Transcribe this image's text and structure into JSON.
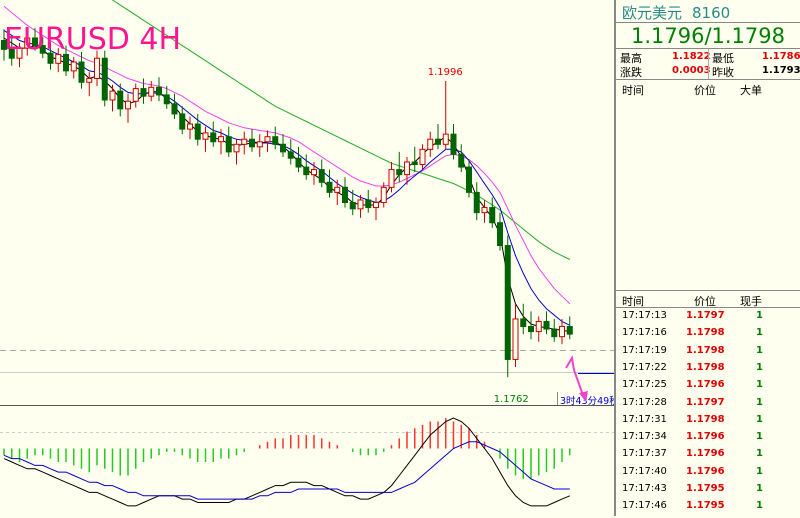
{
  "title": "EURUSD 4H",
  "panel": {
    "name": "欧元美元",
    "code": "8160",
    "quote": "1.1796/1.1798",
    "stats": [
      {
        "label": "最高",
        "value": "1.1822",
        "color": "red"
      },
      {
        "label": "最低",
        "value": "1.1786",
        "color": "red"
      },
      {
        "label": "涨跌",
        "value": "0.0003",
        "color": "red"
      },
      {
        "label": "昨收",
        "value": "1.1793",
        "color": "black"
      }
    ],
    "top_headers": [
      "时间",
      "价位",
      "大单"
    ],
    "tick_headers": [
      "时间",
      "价位",
      "现手"
    ],
    "ticks": [
      {
        "time": "17:17:13",
        "price": "1.1797",
        "vol": "1"
      },
      {
        "time": "17:17:16",
        "price": "1.1798",
        "vol": "1"
      },
      {
        "time": "17:17:19",
        "price": "1.1798",
        "vol": "1"
      },
      {
        "time": "17:17:22",
        "price": "1.1798",
        "vol": "1"
      },
      {
        "time": "17:17:25",
        "price": "1.1796",
        "vol": "1"
      },
      {
        "time": "17:17:28",
        "price": "1.1797",
        "vol": "1"
      },
      {
        "time": "17:17:31",
        "price": "1.1798",
        "vol": "1"
      },
      {
        "time": "17:17:34",
        "price": "1.1796",
        "vol": "1"
      },
      {
        "time": "17:17:37",
        "price": "1.1796",
        "vol": "1"
      },
      {
        "time": "17:17:40",
        "price": "1.1796",
        "vol": "1"
      },
      {
        "time": "17:17:43",
        "price": "1.1795",
        "vol": "1"
      },
      {
        "time": "17:17:46",
        "price": "1.1795",
        "vol": "1"
      }
    ]
  },
  "chart_data": {
    "type": "candlestick",
    "title": "EURUSD 4H",
    "annotations": {
      "high_label": "1.1996",
      "low_label": "1.1762",
      "countdown": "3时43分49秒"
    },
    "colors": {
      "up": "#cc0000",
      "down": "#006400",
      "ma_fast": "#000000",
      "ma_mid": "#0000cc",
      "ma_pink": "#ee44ee",
      "ma_slow": "#22aa22",
      "hist_up": "#ff3333",
      "hist_down": "#22cc22",
      "arrow": "#ee44cc"
    },
    "ylim": [
      1.174,
      1.206
    ],
    "candles": [
      [
        1.2028,
        1.2037,
        1.2012,
        1.2021
      ],
      [
        1.2021,
        1.203,
        1.2008,
        1.2014
      ],
      [
        1.2014,
        1.2026,
        1.2007,
        1.2022
      ],
      [
        1.2022,
        1.2035,
        1.2016,
        1.203
      ],
      [
        1.203,
        1.2038,
        1.202,
        1.2024
      ],
      [
        1.2024,
        1.2031,
        1.2014,
        1.2018
      ],
      [
        1.2018,
        1.2027,
        1.2005,
        1.201
      ],
      [
        1.201,
        1.2022,
        1.2003,
        1.2017
      ],
      [
        1.2017,
        1.2024,
        1.2,
        1.2004
      ],
      [
        1.2004,
        1.2015,
        1.1998,
        1.2011
      ],
      [
        1.2011,
        1.2019,
        1.199,
        1.1995
      ],
      [
        1.1995,
        1.2003,
        1.1984,
        1.1998
      ],
      [
        1.1998,
        1.202,
        1.1992,
        1.2014
      ],
      [
        1.2014,
        1.202,
        1.1976,
        1.1981
      ],
      [
        1.1981,
        1.1993,
        1.1972,
        1.1988
      ],
      [
        1.1988,
        1.1994,
        1.1968,
        1.1974
      ],
      [
        1.1974,
        1.1986,
        1.1963,
        1.198
      ],
      [
        1.198,
        1.1994,
        1.1975,
        1.199
      ],
      [
        1.199,
        1.1998,
        1.1978,
        1.1984
      ],
      [
        1.1984,
        1.1996,
        1.198,
        1.1991
      ],
      [
        1.1991,
        1.1999,
        1.198,
        1.1985
      ],
      [
        1.1985,
        1.1992,
        1.1974,
        1.1978
      ],
      [
        1.1978,
        1.1986,
        1.1966,
        1.197
      ],
      [
        1.197,
        1.1976,
        1.1954,
        1.1958
      ],
      [
        1.1958,
        1.1968,
        1.195,
        1.1962
      ],
      [
        1.1962,
        1.197,
        1.1945,
        1.195
      ],
      [
        1.195,
        1.196,
        1.194,
        1.1955
      ],
      [
        1.1955,
        1.1964,
        1.1944,
        1.1948
      ],
      [
        1.1948,
        1.1958,
        1.1938,
        1.1952
      ],
      [
        1.1952,
        1.196,
        1.1936,
        1.194
      ],
      [
        1.194,
        1.195,
        1.193,
        1.1946
      ],
      [
        1.1946,
        1.1956,
        1.1938,
        1.195
      ],
      [
        1.195,
        1.1958,
        1.194,
        1.1944
      ],
      [
        1.1944,
        1.1954,
        1.1936,
        1.1948
      ],
      [
        1.1948,
        1.1957,
        1.194,
        1.1952
      ],
      [
        1.1952,
        1.196,
        1.1942,
        1.1946
      ],
      [
        1.1946,
        1.1954,
        1.1936,
        1.194
      ],
      [
        1.194,
        1.195,
        1.193,
        1.1935
      ],
      [
        1.1935,
        1.1944,
        1.1924,
        1.1928
      ],
      [
        1.1928,
        1.1938,
        1.1918,
        1.1922
      ],
      [
        1.1922,
        1.1932,
        1.1914,
        1.1926
      ],
      [
        1.1926,
        1.1934,
        1.1912,
        1.1916
      ],
      [
        1.1916,
        1.1926,
        1.1904,
        1.1908
      ],
      [
        1.1908,
        1.1918,
        1.1898,
        1.1912
      ],
      [
        1.1912,
        1.192,
        1.1896,
        1.19
      ],
      [
        1.19,
        1.191,
        1.189,
        1.1895
      ],
      [
        1.1895,
        1.1906,
        1.1888,
        1.1902
      ],
      [
        1.1902,
        1.191,
        1.1892,
        1.1896
      ],
      [
        1.1896,
        1.1904,
        1.1886,
        1.19
      ],
      [
        1.19,
        1.1916,
        1.1896,
        1.1912
      ],
      [
        1.1912,
        1.1932,
        1.1908,
        1.1926
      ],
      [
        1.1926,
        1.194,
        1.1916,
        1.1922
      ],
      [
        1.1922,
        1.1936,
        1.1914,
        1.1932
      ],
      [
        1.1932,
        1.1944,
        1.1924,
        1.193
      ],
      [
        1.193,
        1.1946,
        1.1926,
        1.1942
      ],
      [
        1.1942,
        1.1956,
        1.1936,
        1.195
      ],
      [
        1.195,
        1.1962,
        1.1942,
        1.1946
      ],
      [
        1.1946,
        1.1996,
        1.1942,
        1.1954
      ],
      [
        1.1954,
        1.1962,
        1.1934,
        1.1938
      ],
      [
        1.1938,
        1.1946,
        1.1924,
        1.1928
      ],
      [
        1.1928,
        1.1934,
        1.1904,
        1.1908
      ],
      [
        1.1908,
        1.1916,
        1.1886,
        1.1892
      ],
      [
        1.1892,
        1.1902,
        1.1884,
        1.1896
      ],
      [
        1.1896,
        1.1904,
        1.188,
        1.1884
      ],
      [
        1.1884,
        1.1892,
        1.1862,
        1.1866
      ],
      [
        1.1866,
        1.1874,
        1.1762,
        1.1776
      ],
      [
        1.1776,
        1.182,
        1.177,
        1.1808
      ],
      [
        1.1808,
        1.182,
        1.1796,
        1.1802
      ],
      [
        1.1802,
        1.1814,
        1.1792,
        1.1798
      ],
      [
        1.1798,
        1.181,
        1.179,
        1.1806
      ],
      [
        1.1806,
        1.1814,
        1.1796,
        1.18
      ],
      [
        1.18,
        1.1808,
        1.179,
        1.1794
      ],
      [
        1.1794,
        1.1808,
        1.1788,
        1.1802
      ],
      [
        1.1802,
        1.181,
        1.1792,
        1.1796
      ]
    ],
    "ma_fast": [
      1.203,
      1.2026,
      1.2022,
      1.2022,
      1.2024,
      1.2021,
      1.2015,
      1.2013,
      1.201,
      1.2008,
      1.2004,
      1.1998,
      1.2,
      1.1996,
      1.199,
      1.1982,
      1.1978,
      1.198,
      1.1985,
      1.1988,
      1.1987,
      1.1982,
      1.1976,
      1.1968,
      1.1962,
      1.1956,
      1.1953,
      1.1951,
      1.195,
      1.1946,
      1.1945,
      1.1946,
      1.1947,
      1.1947,
      1.1948,
      1.1948,
      1.1944,
      1.1939,
      1.1932,
      1.1926,
      1.1922,
      1.1918,
      1.1912,
      1.1908,
      1.1905,
      1.19,
      1.1898,
      1.1898,
      1.1898,
      1.1904,
      1.1914,
      1.1922,
      1.1928,
      1.1932,
      1.1938,
      1.1944,
      1.1948,
      1.1952,
      1.1946,
      1.1936,
      1.192,
      1.1904,
      1.1896,
      1.1888,
      1.1875,
      1.184,
      1.182,
      1.181,
      1.1804,
      1.1802,
      1.1801,
      1.18,
      1.1799,
      1.1798
    ],
    "ma_mid": [
      1.2036,
      1.2032,
      1.2028,
      1.2026,
      1.2025,
      1.2023,
      1.202,
      1.2017,
      1.2014,
      1.2011,
      1.2008,
      1.2004,
      1.2003,
      1.2,
      1.1996,
      1.1991,
      1.1987,
      1.1986,
      1.1986,
      1.1987,
      1.1986,
      1.1984,
      1.198,
      1.1975,
      1.197,
      1.1965,
      1.1961,
      1.1957,
      1.1955,
      1.1952,
      1.195,
      1.1949,
      1.1948,
      1.1947,
      1.1947,
      1.1946,
      1.1945,
      1.1942,
      1.1938,
      1.1933,
      1.1929,
      1.1925,
      1.192,
      1.1915,
      1.1911,
      1.1907,
      1.1904,
      1.1902,
      1.19,
      1.1901,
      1.1905,
      1.191,
      1.1916,
      1.1921,
      1.1926,
      1.1932,
      1.1937,
      1.1942,
      1.1942,
      1.194,
      1.1933,
      1.1924,
      1.1915,
      1.1906,
      1.1896,
      1.1876,
      1.1858,
      1.1844,
      1.1832,
      1.1823,
      1.1816,
      1.1811,
      1.1806,
      1.1803
    ],
    "ma_pink": [
      1.2055,
      1.205,
      1.2045,
      1.204,
      1.2036,
      1.2032,
      1.2028,
      1.2024,
      1.2021,
      1.2018,
      1.2015,
      1.2012,
      1.201,
      1.2007,
      1.2004,
      1.2001,
      1.1998,
      1.1996,
      1.1994,
      1.1993,
      1.1992,
      1.199,
      1.1987,
      1.1984,
      1.198,
      1.1976,
      1.1972,
      1.1969,
      1.1966,
      1.1963,
      1.1961,
      1.1959,
      1.1958,
      1.1957,
      1.1956,
      1.1955,
      1.1953,
      1.1951,
      1.1948,
      1.1944,
      1.194,
      1.1936,
      1.1932,
      1.1928,
      1.1924,
      1.192,
      1.1917,
      1.1915,
      1.1913,
      1.1913,
      1.1914,
      1.1916,
      1.1919,
      1.1922,
      1.1925,
      1.1929,
      1.1933,
      1.1937,
      1.1938,
      1.1937,
      1.1934,
      1.1929,
      1.1923,
      1.1916,
      1.1908,
      1.1895,
      1.1882,
      1.187,
      1.1858,
      1.1848,
      1.184,
      1.1832,
      1.1826,
      1.182
    ],
    "ma_slow": [
      1.211,
      1.2107,
      1.2104,
      1.2101,
      1.2098,
      1.2095,
      1.2091,
      1.2088,
      1.2084,
      1.208,
      1.2076,
      1.2072,
      1.2068,
      1.2064,
      1.206,
      1.2056,
      1.2052,
      1.2048,
      1.2044,
      1.204,
      1.2036,
      1.2032,
      1.2028,
      1.2024,
      1.202,
      1.2016,
      1.2012,
      1.2008,
      1.2004,
      1.2,
      1.1996,
      1.1992,
      1.1988,
      1.1984,
      1.198,
      1.1976,
      1.1973,
      1.197,
      1.1967,
      1.1964,
      1.1961,
      1.1958,
      1.1955,
      1.1952,
      1.1949,
      1.1946,
      1.1943,
      1.194,
      1.1937,
      1.1934,
      1.1931,
      1.1929,
      1.1927,
      1.1925,
      1.1923,
      1.1921,
      1.1919,
      1.1917,
      1.1915,
      1.1912,
      1.1909,
      1.1906,
      1.1902,
      1.1898,
      1.1894,
      1.1889,
      1.1884,
      1.1879,
      1.1874,
      1.1869,
      1.1865,
      1.1861,
      1.1858,
      1.1855
    ],
    "macd_hist": [
      -2,
      -3,
      -4,
      -3,
      -2,
      -2,
      -3,
      -4,
      -4,
      -5,
      -6,
      -7,
      -5,
      -6,
      -7,
      -8,
      -8,
      -6,
      -4,
      -3,
      -2,
      -1,
      -1,
      -2,
      -3,
      -4,
      -4,
      -4,
      -3,
      -3,
      -2,
      -1,
      0,
      1,
      2,
      3,
      3,
      4,
      4,
      4,
      4,
      3,
      2,
      1,
      0,
      -1,
      -2,
      -2,
      -2,
      -1,
      1,
      3,
      5,
      6,
      7,
      8,
      8,
      9,
      8,
      7,
      6,
      4,
      2,
      0,
      -3,
      -6,
      -8,
      -9,
      -9,
      -8,
      -7,
      -6,
      -4,
      -2
    ],
    "macd_line": [
      -3,
      -4,
      -5,
      -6,
      -6,
      -7,
      -8,
      -9,
      -10,
      -11,
      -12,
      -13,
      -13,
      -14,
      -15,
      -16,
      -17,
      -17,
      -16,
      -15,
      -14,
      -14,
      -14,
      -15,
      -15,
      -16,
      -16,
      -16,
      -16,
      -16,
      -15,
      -15,
      -14,
      -13,
      -12,
      -11,
      -11,
      -10,
      -10,
      -10,
      -11,
      -11,
      -12,
      -13,
      -14,
      -14,
      -15,
      -15,
      -14,
      -13,
      -11,
      -8,
      -5,
      -2,
      1,
      4,
      6,
      8,
      9,
      8,
      6,
      3,
      0,
      -3,
      -7,
      -11,
      -14,
      -16,
      -17,
      -17,
      -17,
      -16,
      -15,
      -14
    ],
    "signal_line": [
      -2,
      -3,
      -3,
      -4,
      -5,
      -5,
      -6,
      -7,
      -7,
      -8,
      -9,
      -10,
      -10,
      -11,
      -11,
      -12,
      -13,
      -13,
      -14,
      -14,
      -14,
      -14,
      -14,
      -14,
      -14,
      -15,
      -15,
      -15,
      -15,
      -15,
      -15,
      -15,
      -15,
      -14,
      -14,
      -13,
      -13,
      -13,
      -12,
      -12,
      -12,
      -12,
      -12,
      -12,
      -13,
      -13,
      -13,
      -13,
      -13,
      -13,
      -13,
      -12,
      -11,
      -10,
      -8,
      -6,
      -4,
      -2,
      0,
      1,
      2,
      2,
      1,
      0,
      -1,
      -3,
      -5,
      -7,
      -9,
      -10,
      -11,
      -12,
      -12,
      -12
    ],
    "macd_ylim": [
      -20,
      12
    ]
  }
}
